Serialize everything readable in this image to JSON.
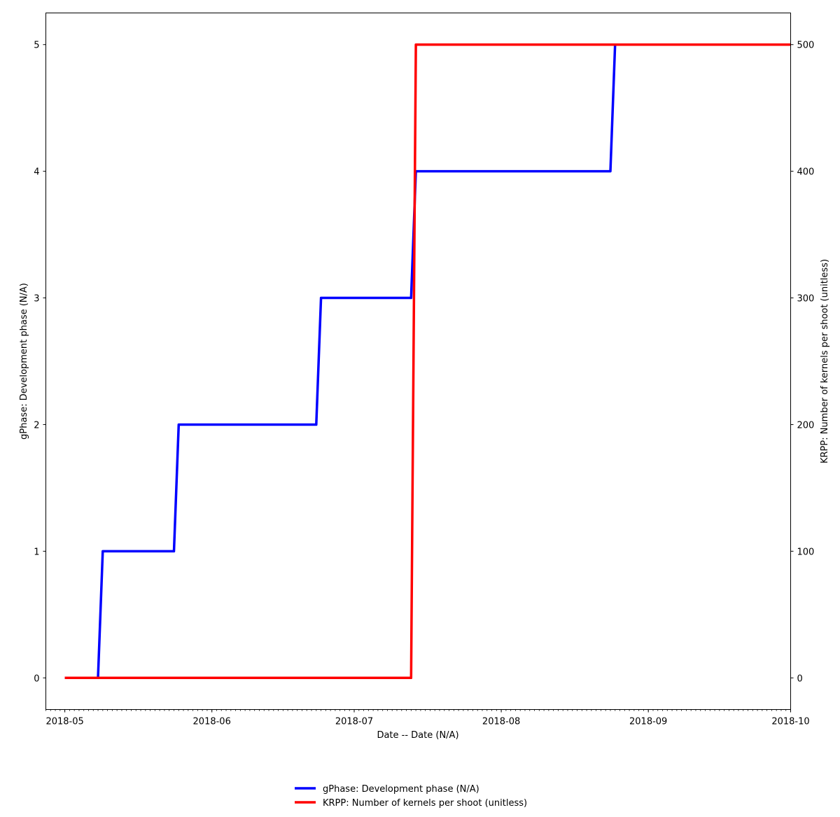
{
  "chart_data": {
    "type": "line",
    "xlabel": "Date --  Date (N/A)",
    "ylabel_left": "gPhase:   Development phase (N/A)",
    "ylabel_right": "KRPP:  Number of kernels per shoot (unitless)",
    "xlim": [
      "2018-04-27",
      "2018-10-01"
    ],
    "ylim_left": [
      -0.25,
      5.25
    ],
    "ylim_right": [
      -25,
      525
    ],
    "x_ticks": [
      "2018-05",
      "2018-06",
      "2018-07",
      "2018-08",
      "2018-09",
      "2018-10"
    ],
    "x_tick_dates": [
      "2018-05-01",
      "2018-06-01",
      "2018-07-01",
      "2018-08-01",
      "2018-09-01",
      "2018-10-01"
    ],
    "y_ticks_left": [
      0,
      1,
      2,
      3,
      4,
      5
    ],
    "y_ticks_right": [
      0,
      100,
      200,
      300,
      400,
      500
    ],
    "minor_ticks": "daily",
    "grid": false,
    "legend_position": "bottom-center",
    "series": [
      {
        "name": "gPhase:  Development phase (N/A)",
        "axis": "left",
        "color": "#0000ff",
        "points": [
          [
            "2018-05-01",
            0
          ],
          [
            "2018-05-08",
            0
          ],
          [
            "2018-05-09",
            1
          ],
          [
            "2018-05-24",
            1
          ],
          [
            "2018-05-25",
            2
          ],
          [
            "2018-06-23",
            2
          ],
          [
            "2018-06-24",
            3
          ],
          [
            "2018-07-13",
            3
          ],
          [
            "2018-07-14",
            4
          ],
          [
            "2018-08-24",
            4
          ],
          [
            "2018-08-25",
            5
          ],
          [
            "2018-10-01",
            5
          ]
        ]
      },
      {
        "name": "KRPP:  Number of kernels per shoot (unitless)",
        "axis": "right",
        "color": "#ff0000",
        "points": [
          [
            "2018-05-01",
            0
          ],
          [
            "2018-07-13",
            0
          ],
          [
            "2018-07-14",
            500
          ],
          [
            "2018-10-01",
            500
          ]
        ]
      }
    ]
  }
}
